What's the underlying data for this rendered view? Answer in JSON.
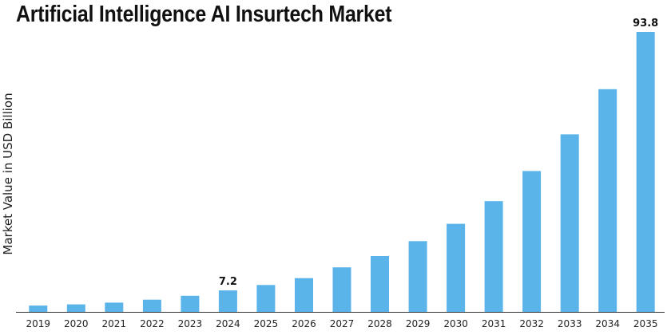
{
  "chart_data": {
    "type": "bar",
    "title": "Artificial Intelligence AI Insurtech Market",
    "xlabel": "",
    "ylabel": "Market Value in USD Billion",
    "categories": [
      "2019",
      "2020",
      "2021",
      "2022",
      "2023",
      "2024",
      "2025",
      "2026",
      "2027",
      "2028",
      "2029",
      "2030",
      "2031",
      "2032",
      "2033",
      "2034",
      "2035"
    ],
    "values": [
      2.1,
      2.5,
      3.1,
      4.1,
      5.4,
      7.2,
      9.0,
      11.3,
      14.9,
      18.7,
      23.7,
      29.5,
      37.1,
      47.2,
      59.5,
      74.6,
      93.8
    ],
    "data_labels": [
      {
        "category": "2024",
        "text": "7.2"
      },
      {
        "category": "2035",
        "text": "93.8"
      }
    ],
    "ylim": [
      0,
      93.8
    ],
    "grid": false,
    "legend": "none",
    "bar_color": "#5ab4e9",
    "axis_color": "#333333"
  }
}
